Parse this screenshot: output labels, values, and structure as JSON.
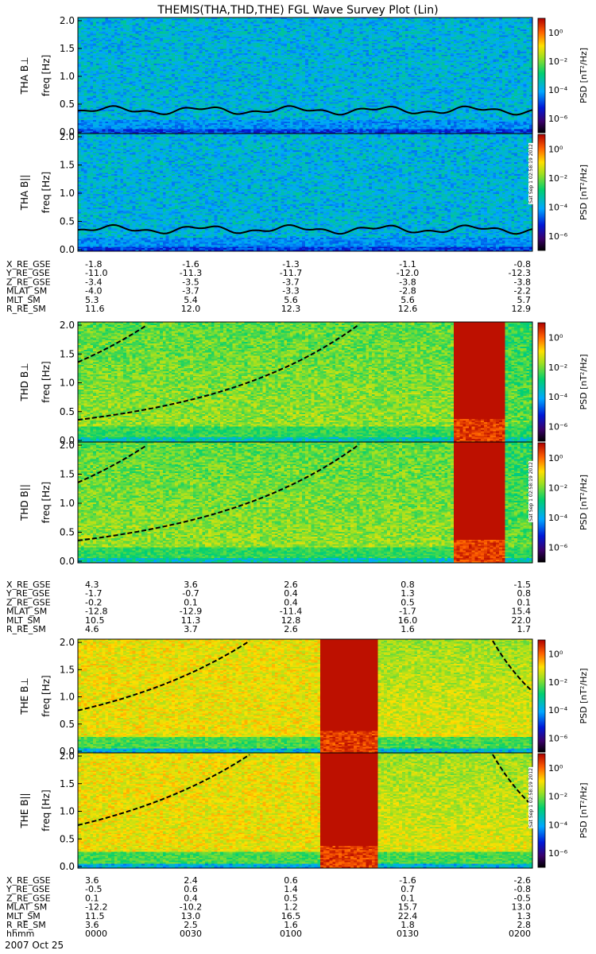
{
  "chart_data": {
    "type": "heatmap",
    "title": "THEMIS(THA,THD,THE) FGL Wave Survey Plot (Lin)",
    "date_label": "2007 Oct 25",
    "time_row_label": "hhmm",
    "time_ticks": [
      "0000",
      "0030",
      "0100",
      "0130",
      "0200"
    ],
    "yticks": [
      "0.0",
      "0.5",
      "1.0",
      "1.5",
      "2.0"
    ],
    "ylim": [
      0,
      2.0
    ],
    "colorbar": {
      "label": "PSD [nT²/Hz]",
      "ticks": [
        "10⁰",
        "10⁻²",
        "10⁻⁴",
        "10⁻⁶"
      ],
      "range_log10": [
        -7,
        1
      ]
    },
    "stamp": "Sat Sep 1 02:58:19 2012",
    "groups": [
      {
        "probe": "THA",
        "panels": [
          {
            "ylabel_probe": "THA B⊥",
            "ylabel_freq": "freq [Hz]"
          },
          {
            "ylabel_probe": "THA B||",
            "ylabel_freq": "freq [Hz]"
          }
        ],
        "ephemeris": [
          {
            "label": "X_RE_GSE",
            "values": [
              "-1.8",
              "-1.6",
              "-1.3",
              "-1.1",
              "-0.8"
            ]
          },
          {
            "label": "Y_RE_GSE",
            "values": [
              "-11.0",
              "-11.3",
              "-11.7",
              "-12.0",
              "-12.3"
            ]
          },
          {
            "label": "Z_RE_GSE",
            "values": [
              "-3.4",
              "-3.5",
              "-3.7",
              "-3.8",
              "-3.8"
            ]
          },
          {
            "label": "MLAT_SM",
            "values": [
              "-4.0",
              "-3.7",
              "-3.3",
              "-2.8",
              "-2.2"
            ]
          },
          {
            "label": "MLT_SM",
            "values": [
              "5.3",
              "5.4",
              "5.6",
              "5.6",
              "5.7"
            ]
          },
          {
            "label": "R_RE_SM",
            "values": [
              "11.6",
              "12.0",
              "12.3",
              "12.6",
              "12.9"
            ]
          }
        ]
      },
      {
        "probe": "THD",
        "panels": [
          {
            "ylabel_probe": "THD B⊥",
            "ylabel_freq": "freq [Hz]"
          },
          {
            "ylabel_probe": "THD B||",
            "ylabel_freq": "freq [Hz]"
          }
        ],
        "ephemeris": [
          {
            "label": "X_RE_GSE",
            "values": [
              "4.3",
              "3.6",
              "2.6",
              "0.8",
              "-1.5"
            ]
          },
          {
            "label": "Y_RE_GSE",
            "values": [
              "-1.7",
              "-0.7",
              "0.4",
              "1.3",
              "0.8"
            ]
          },
          {
            "label": "Z_RE_GSE",
            "values": [
              "-0.2",
              "0.1",
              "0.4",
              "0.5",
              "0.1"
            ]
          },
          {
            "label": "MLAT_SM",
            "values": [
              "-12.8",
              "-12.9",
              "-11.4",
              "-1.7",
              "15.4"
            ]
          },
          {
            "label": "MLT_SM",
            "values": [
              "10.5",
              "11.3",
              "12.8",
              "16.0",
              "22.0"
            ]
          },
          {
            "label": "R_RE_SM",
            "values": [
              "4.6",
              "3.7",
              "2.6",
              "1.6",
              "1.7"
            ]
          }
        ]
      },
      {
        "probe": "THE",
        "panels": [
          {
            "ylabel_probe": "THE B⊥",
            "ylabel_freq": "freq [Hz]"
          },
          {
            "ylabel_probe": "THE B||",
            "ylabel_freq": "freq [Hz]"
          }
        ],
        "ephemeris": [
          {
            "label": "X_RE_GSE",
            "values": [
              "3.6",
              "2.4",
              "0.6",
              "-1.6",
              "-2.6"
            ]
          },
          {
            "label": "Y_RE_GSE",
            "values": [
              "-0.5",
              "0.6",
              "1.4",
              "0.7",
              "-0.8"
            ]
          },
          {
            "label": "Z_RE_GSE",
            "values": [
              "0.1",
              "0.4",
              "0.5",
              "0.1",
              "-0.5"
            ]
          },
          {
            "label": "MLAT_SM",
            "values": [
              "-12.2",
              "-10.2",
              "1.2",
              "15.7",
              "13.0"
            ]
          },
          {
            "label": "MLT_SM",
            "values": [
              "11.5",
              "13.0",
              "16.5",
              "22.4",
              "1.3"
            ]
          },
          {
            "label": "R_RE_SM",
            "values": [
              "3.6",
              "2.5",
              "1.6",
              "1.8",
              "2.8"
            ]
          }
        ]
      }
    ]
  }
}
